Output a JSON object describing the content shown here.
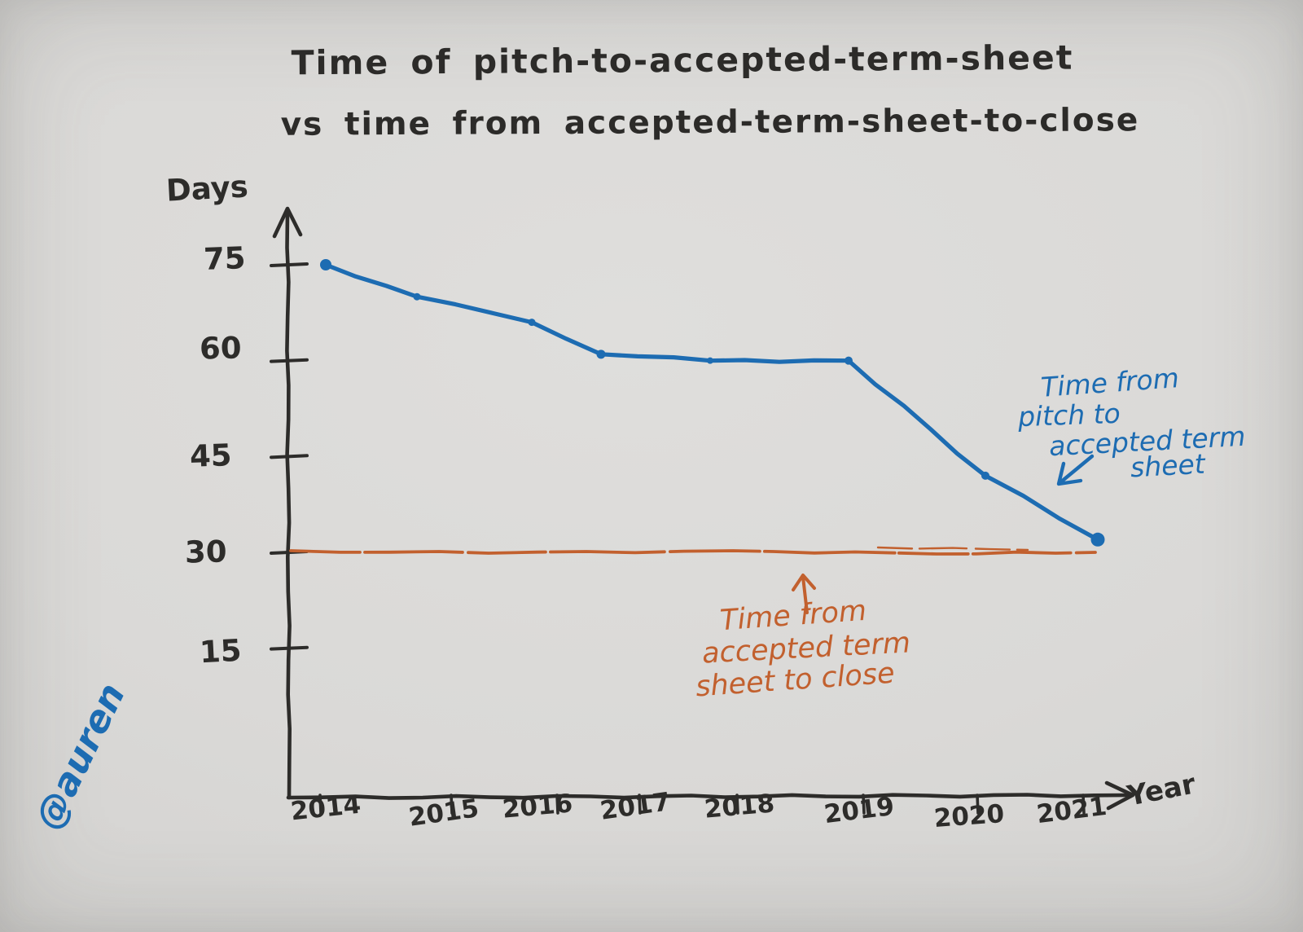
{
  "title": {
    "line1": "Time of pitch-to-accepted-term-sheet",
    "line2": "vs time from accepted-term-sheet-to-close"
  },
  "y_axis": {
    "label": "Days",
    "ticks": [
      "75",
      "60",
      "45",
      "30",
      "15"
    ]
  },
  "x_axis": {
    "label": "Year",
    "ticks": [
      "2014",
      "2015",
      "2016",
      "2017",
      "2018",
      "2019",
      "2020",
      "2021"
    ]
  },
  "annotations": {
    "blue": {
      "lines": [
        "Time from",
        "pitch to",
        "accepted term",
        "sheet"
      ],
      "arrow": "↙"
    },
    "orange": {
      "lines": [
        "Time from",
        "accepted term",
        "sheet to close"
      ],
      "arrow": "↑"
    }
  },
  "signature": "@auren",
  "colors": {
    "blue": "#1d6cb2",
    "orange": "#c2602e",
    "ink": "#2d2c2a",
    "paper": "#dad9d7"
  },
  "chart_data": {
    "type": "line",
    "x": [
      2014,
      2015,
      2016,
      2017,
      2018,
      2019,
      2020,
      2021
    ],
    "series": [
      {
        "name": "Time from pitch to accepted term sheet",
        "color": "#1d6cb2",
        "values": [
          75,
          70,
          66,
          61,
          60,
          60,
          42,
          32
        ]
      },
      {
        "name": "Time from accepted term sheet to close",
        "color": "#c2602e",
        "values": [
          30,
          30,
          30,
          30,
          30,
          30,
          30,
          30
        ]
      }
    ],
    "title": "Time of pitch-to-accepted-term-sheet vs time from accepted-term-sheet-to-close",
    "xlabel": "Year",
    "ylabel": "Days",
    "ylim": [
      0,
      80
    ],
    "yticks": [
      75,
      60,
      45,
      30,
      15
    ],
    "grid": false,
    "legend_position": "inline-annotations",
    "style": "hand-drawn"
  }
}
